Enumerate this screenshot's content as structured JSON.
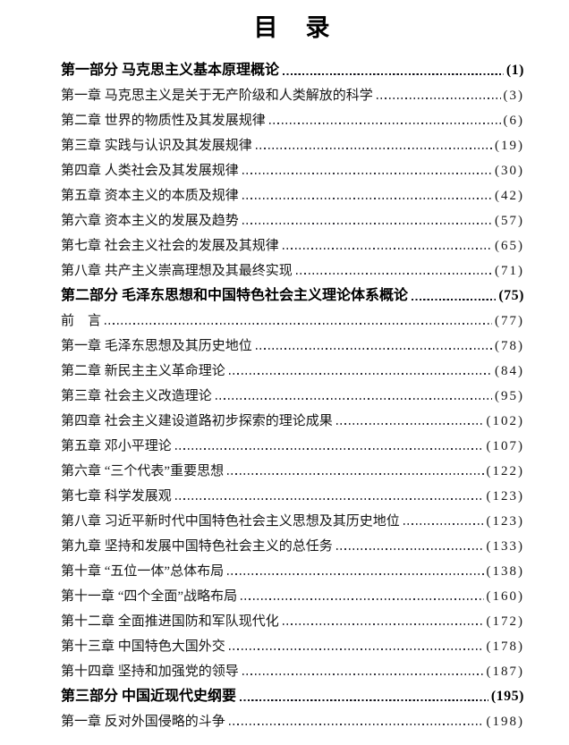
{
  "page": {
    "title": "目　录"
  },
  "toc": {
    "entries": [
      {
        "label": "第一部分 马克思主义基本原理概论",
        "page": "(1)",
        "level": "part"
      },
      {
        "label": "第一章 马克思主义是关于无产阶级和人类解放的科学",
        "page": "(3)",
        "level": "chapter"
      },
      {
        "label": "第二章 世界的物质性及其发展规律",
        "page": "(6)",
        "level": "chapter"
      },
      {
        "label": "第三章 实践与认识及其发展规律",
        "page": "(19)",
        "level": "chapter"
      },
      {
        "label": "第四章 人类社会及其发展规律",
        "page": "(30)",
        "level": "chapter"
      },
      {
        "label": "第五章 资本主义的本质及规律",
        "page": "(42)",
        "level": "chapter"
      },
      {
        "label": "第六章 资本主义的发展及趋势",
        "page": "(57)",
        "level": "chapter"
      },
      {
        "label": "第七章 社会主义社会的发展及其规律",
        "page": "(65)",
        "level": "chapter"
      },
      {
        "label": "第八章 共产主义崇高理想及其最终实现",
        "page": "(71)",
        "level": "chapter"
      },
      {
        "label": "第二部分 毛泽东思想和中国特色社会主义理论体系概论",
        "page": "(75)",
        "level": "part"
      },
      {
        "label": "前　言",
        "page": "(77)",
        "level": "chapter"
      },
      {
        "label": "第一章 毛泽东思想及其历史地位",
        "page": "(78)",
        "level": "chapter"
      },
      {
        "label": "第二章 新民主主义革命理论",
        "page": "(84)",
        "level": "chapter"
      },
      {
        "label": "第三章 社会主义改造理论",
        "page": "(95)",
        "level": "chapter"
      },
      {
        "label": "第四章 社会主义建设道路初步探索的理论成果",
        "page": "(102)",
        "level": "chapter"
      },
      {
        "label": "第五章 邓小平理论",
        "page": "(107)",
        "level": "chapter"
      },
      {
        "label": "第六章 “三个代表”重要思想",
        "page": "(122)",
        "level": "chapter"
      },
      {
        "label": "第七章 科学发展观",
        "page": "(123)",
        "level": "chapter"
      },
      {
        "label": "第八章 习近平新时代中国特色社会主义思想及其历史地位",
        "page": "(123)",
        "level": "chapter"
      },
      {
        "label": "第九章 坚持和发展中国特色社会主义的总任务",
        "page": "(133)",
        "level": "chapter"
      },
      {
        "label": "第十章 “五位一体”总体布局",
        "page": "(138)",
        "level": "chapter"
      },
      {
        "label": "第十一章 “四个全面”战略布局",
        "page": "(160)",
        "level": "chapter"
      },
      {
        "label": "第十二章 全面推进国防和军队现代化",
        "page": "(172)",
        "level": "chapter"
      },
      {
        "label": "第十三章 中国特色大国外交",
        "page": "(178)",
        "level": "chapter"
      },
      {
        "label": "第十四章 坚持和加强党的领导",
        "page": "(187)",
        "level": "chapter"
      },
      {
        "label": "第三部分 中国近现代史纲要",
        "page": "(195)",
        "level": "part"
      },
      {
        "label": "第一章 反对外国侵略的斗争",
        "page": "(198)",
        "level": "chapter"
      }
    ]
  }
}
